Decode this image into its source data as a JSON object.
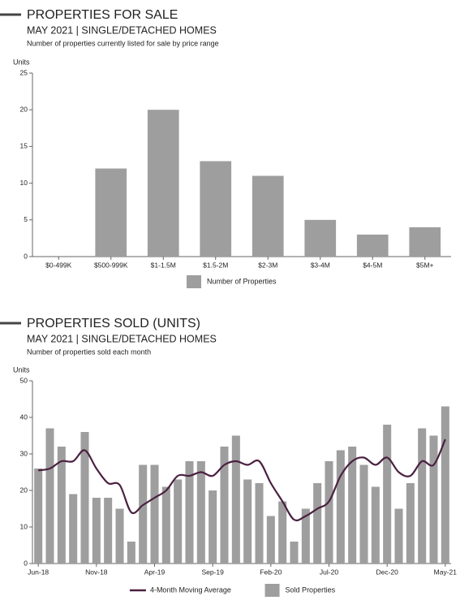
{
  "chart_data": [
    {
      "type": "bar",
      "title": "PROPERTIES FOR SALE",
      "subtitle": "MAY 2021 | SINGLE/DETACHED HOMES",
      "note": "Number of properties currently listed for sale by price range",
      "ylabel": "Units",
      "categories": [
        "$0-499K",
        "$500-999K",
        "$1-1.5M",
        "$1.5-2M",
        "$2-3M",
        "$3-4M",
        "$4-5M",
        "$5M+"
      ],
      "series": [
        {
          "name": "Number of Properties",
          "type": "bar",
          "color": "#9e9e9e",
          "values": [
            0,
            12,
            20,
            13,
            11,
            5,
            3,
            4
          ]
        }
      ],
      "ylim": [
        0,
        25
      ],
      "yticks": [
        0,
        5,
        10,
        15,
        20,
        25
      ]
    },
    {
      "type": "bar",
      "title": "PROPERTIES SOLD (UNITS)",
      "subtitle": "MAY 2021 | SINGLE/DETACHED HOMES",
      "note": "Number of properties sold each month",
      "ylabel": "Units",
      "categories": [
        "Jun-18",
        null,
        null,
        null,
        null,
        "Nov-18",
        null,
        null,
        null,
        null,
        "Apr-19",
        null,
        null,
        null,
        null,
        "Sep-19",
        null,
        null,
        null,
        null,
        "Feb-20",
        null,
        null,
        null,
        null,
        "Jul-20",
        null,
        null,
        null,
        null,
        "Dec-20",
        null,
        null,
        null,
        null,
        "May-21"
      ],
      "series": [
        {
          "name": "4-Month Moving Average",
          "type": "line",
          "color": "#4a2040",
          "values": [
            25.5,
            26,
            28,
            28,
            31,
            26,
            22,
            21.5,
            14,
            16,
            18,
            20,
            24,
            24,
            25,
            24,
            27,
            28,
            27,
            28,
            22,
            17,
            12,
            13,
            15,
            17,
            24,
            28,
            29,
            27,
            29,
            25,
            24,
            28,
            27,
            34
          ]
        },
        {
          "name": "Sold Properties",
          "type": "bar",
          "color": "#9e9e9e",
          "values": [
            26,
            37,
            32,
            19,
            36,
            18,
            18,
            15,
            6,
            27,
            27,
            21,
            23,
            28,
            28,
            20,
            32,
            35,
            23,
            22,
            13,
            17,
            6,
            15,
            22,
            28,
            31,
            32,
            27,
            21,
            38,
            15,
            22,
            37,
            35,
            43
          ]
        }
      ],
      "ylim": [
        0,
        50
      ],
      "yticks": [
        0,
        10,
        20,
        30,
        40,
        50
      ]
    }
  ]
}
